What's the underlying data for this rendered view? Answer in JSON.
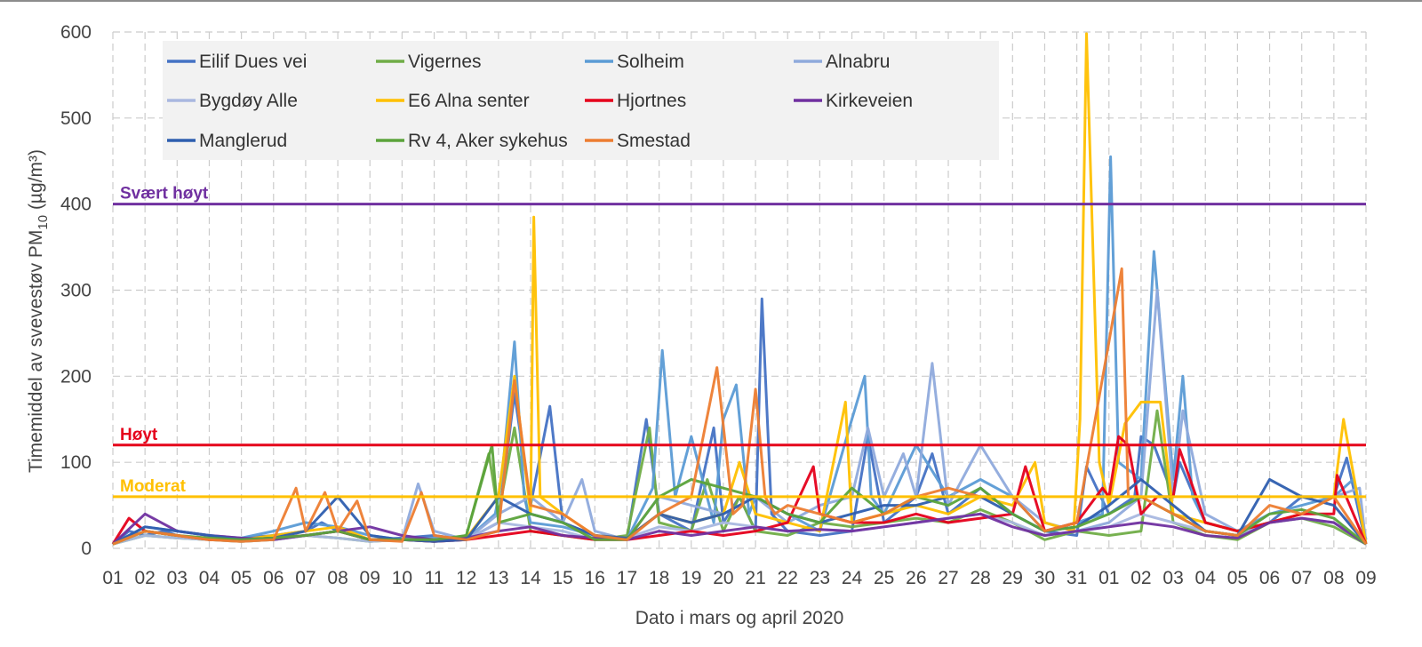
{
  "chart_data": {
    "type": "line",
    "title": "",
    "xlabel": "Dato i mars og april 2020",
    "ylabel_main": "Timemiddel av svevestøv PM",
    "ylabel_sub": "10",
    "ylabel_unit": " (µg/m³)",
    "ylim": [
      0,
      600
    ],
    "yticks": [
      "0",
      "100",
      "200",
      "300",
      "400",
      "500",
      "600"
    ],
    "xticks": [
      "01",
      "02",
      "03",
      "04",
      "05",
      "06",
      "07",
      "08",
      "09",
      "10",
      "11",
      "12",
      "13",
      "14",
      "15",
      "16",
      "17",
      "18",
      "19",
      "20",
      "21",
      "22",
      "23",
      "24",
      "25",
      "26",
      "27",
      "28",
      "29",
      "30",
      "31",
      "01",
      "02",
      "03",
      "04",
      "05",
      "06",
      "07",
      "08",
      "09"
    ],
    "grid": true,
    "legend_position": "top-left",
    "thresholds": [
      {
        "label": "Svært høyt",
        "value": 400,
        "color": "#7030A0"
      },
      {
        "label": "Høyt",
        "value": 120,
        "color": "#E5001B"
      },
      {
        "label": "Moderat",
        "value": 60,
        "color": "#FFC000"
      }
    ],
    "series": [
      {
        "name": "Eilif Dues vei",
        "color": "#4472C4",
        "x": [
          0,
          0.5,
          1,
          1.6,
          2,
          3,
          4,
          5,
          6,
          6.5,
          7,
          8,
          9,
          10,
          11,
          12,
          12.5,
          13,
          13.6,
          14,
          15,
          16,
          16.6,
          17,
          18,
          18.7,
          19,
          19.5,
          20,
          20.2,
          20.5,
          21,
          22,
          23,
          23.5,
          24,
          25,
          25.5,
          26,
          27,
          28,
          29,
          30,
          30.3,
          31,
          31.8,
          32,
          32.4,
          33,
          33.2,
          34,
          35,
          36,
          37,
          38,
          38.4,
          39
        ],
        "y": [
          5,
          20,
          15,
          20,
          15,
          10,
          12,
          15,
          20,
          30,
          20,
          10,
          12,
          15,
          10,
          30,
          180,
          50,
          165,
          30,
          15,
          10,
          150,
          40,
          20,
          140,
          30,
          60,
          20,
          290,
          40,
          20,
          15,
          20,
          130,
          30,
          60,
          110,
          40,
          70,
          40,
          20,
          15,
          95,
          40,
          60,
          130,
          120,
          60,
          100,
          30,
          20,
          30,
          60,
          60,
          105,
          5
        ]
      },
      {
        "name": "Vigernes",
        "color": "#70AD47",
        "x": [
          0,
          1,
          2,
          3,
          4,
          5,
          6,
          7,
          8,
          9,
          10,
          11,
          11.7,
          12,
          12.5,
          13,
          14,
          15,
          16,
          16.7,
          17,
          18,
          18.5,
          19,
          19.5,
          20,
          21,
          22,
          23,
          24,
          25,
          26,
          27,
          28,
          29,
          30,
          31,
          32,
          32.5,
          33,
          34,
          35,
          36,
          37,
          38,
          39
        ],
        "y": [
          5,
          15,
          12,
          10,
          8,
          10,
          15,
          12,
          8,
          10,
          8,
          15,
          110,
          40,
          140,
          20,
          15,
          10,
          15,
          140,
          30,
          20,
          80,
          20,
          60,
          20,
          15,
          30,
          25,
          30,
          35,
          30,
          45,
          30,
          10,
          20,
          15,
          20,
          160,
          30,
          15,
          10,
          30,
          35,
          25,
          5
        ]
      },
      {
        "name": "Solheim",
        "color": "#5B9BD5",
        "x": [
          0,
          1,
          2,
          3,
          4,
          5,
          6,
          7,
          8,
          9,
          10,
          11,
          11.9,
          12.1,
          12.5,
          12.8,
          13,
          14,
          15,
          16,
          16.8,
          17.1,
          17.5,
          18,
          18.7,
          19,
          19.4,
          19.8,
          20,
          21,
          22,
          23,
          23.4,
          23.6,
          24,
          25,
          26,
          27,
          28,
          29,
          30,
          30.8,
          31.05,
          31.3,
          32,
          32.4,
          33,
          33.3,
          33.6,
          34,
          35,
          36,
          37,
          38,
          38.6,
          39
        ],
        "y": [
          5,
          25,
          20,
          15,
          12,
          20,
          30,
          25,
          15,
          10,
          12,
          10,
          40,
          80,
          240,
          60,
          30,
          25,
          15,
          10,
          70,
          230,
          60,
          130,
          30,
          150,
          190,
          40,
          60,
          40,
          20,
          150,
          200,
          60,
          40,
          120,
          60,
          80,
          60,
          20,
          30,
          40,
          455,
          100,
          80,
          345,
          80,
          200,
          60,
          30,
          20,
          40,
          50,
          60,
          80,
          10
        ]
      },
      {
        "name": "Alnabru",
        "color": "#8FAADC",
        "x": [
          0,
          1,
          2,
          3,
          4,
          5,
          6,
          7,
          8,
          9,
          9.5,
          10,
          11,
          12,
          13,
          14,
          14.6,
          15,
          16,
          17,
          18,
          19,
          20,
          21,
          22,
          23,
          23.5,
          24,
          24.6,
          25,
          25.5,
          26,
          27,
          28,
          29,
          30,
          31,
          32,
          32.5,
          33,
          33.3,
          34,
          35,
          36,
          37,
          38,
          38.8,
          39
        ],
        "y": [
          5,
          20,
          15,
          10,
          10,
          12,
          15,
          20,
          10,
          10,
          75,
          20,
          10,
          40,
          60,
          30,
          80,
          20,
          10,
          60,
          50,
          40,
          60,
          30,
          50,
          60,
          140,
          60,
          110,
          60,
          215,
          50,
          120,
          60,
          30,
          20,
          30,
          60,
          300,
          60,
          160,
          40,
          20,
          30,
          40,
          60,
          70,
          5
        ]
      },
      {
        "name": "Bygdøy Alle",
        "color": "#A9B8E0",
        "x": [
          0,
          1,
          2,
          3,
          4,
          5,
          6,
          7,
          8,
          9,
          10,
          11,
          12,
          13,
          14,
          15,
          16,
          17,
          18,
          19,
          20,
          21,
          22,
          23,
          24,
          25,
          26,
          27,
          28,
          29,
          30,
          31,
          32,
          33,
          34,
          35,
          36,
          37,
          38,
          39
        ],
        "y": [
          5,
          15,
          12,
          10,
          8,
          10,
          15,
          12,
          8,
          10,
          8,
          10,
          30,
          25,
          20,
          10,
          12,
          25,
          20,
          30,
          25,
          20,
          22,
          20,
          25,
          30,
          35,
          40,
          30,
          15,
          20,
          25,
          40,
          30,
          20,
          15,
          30,
          35,
          30,
          5
        ]
      },
      {
        "name": "E6 Alna senter",
        "color": "#FFC000",
        "x": [
          0,
          1,
          2,
          3,
          4,
          5,
          6,
          7,
          8,
          9,
          10,
          11,
          12,
          12.5,
          13,
          13.1,
          13.3,
          14,
          15,
          16,
          17,
          18,
          19,
          19.5,
          20,
          21,
          22,
          22.8,
          23,
          24,
          25,
          26,
          27,
          28,
          28.7,
          29,
          29.9,
          30.1,
          30.3,
          30.7,
          31,
          31.5,
          32,
          32.6,
          33,
          34,
          35,
          36,
          37,
          38,
          38.3,
          39
        ],
        "y": [
          5,
          20,
          15,
          10,
          10,
          15,
          20,
          25,
          10,
          10,
          10,
          12,
          60,
          200,
          40,
          385,
          60,
          40,
          15,
          12,
          40,
          30,
          40,
          100,
          40,
          30,
          20,
          170,
          30,
          40,
          50,
          40,
          60,
          50,
          100,
          30,
          20,
          150,
          598,
          100,
          50,
          145,
          170,
          170,
          40,
          30,
          20,
          30,
          40,
          60,
          150,
          5
        ]
      },
      {
        "name": "Hjortnes",
        "color": "#E5001B",
        "x": [
          0,
          0.5,
          1,
          2,
          3,
          4,
          5,
          6,
          7,
          8,
          9,
          10,
          11,
          12,
          13,
          14,
          15,
          16,
          17,
          18,
          19,
          20,
          21,
          21.8,
          22,
          23,
          24,
          25,
          26,
          27,
          28,
          28.4,
          29,
          30,
          30.8,
          31,
          31.3,
          31.6,
          32,
          32.5,
          33,
          33.2,
          34,
          35,
          36,
          37,
          38,
          38.1,
          39
        ],
        "y": [
          5,
          35,
          20,
          15,
          10,
          10,
          12,
          15,
          20,
          10,
          10,
          8,
          10,
          15,
          20,
          15,
          10,
          10,
          15,
          20,
          15,
          20,
          30,
          95,
          40,
          30,
          30,
          40,
          30,
          35,
          40,
          95,
          20,
          30,
          70,
          60,
          130,
          120,
          40,
          60,
          60,
          115,
          30,
          20,
          30,
          40,
          40,
          85,
          5
        ]
      },
      {
        "name": "Kirkeveien",
        "color": "#7030A0",
        "x": [
          0,
          1,
          2,
          3,
          4,
          5,
          6,
          7,
          8,
          9,
          10,
          11,
          12,
          13,
          14,
          15,
          16,
          17,
          18,
          19,
          20,
          21,
          22,
          23,
          24,
          25,
          26,
          27,
          28,
          29,
          30,
          31,
          32,
          33,
          34,
          35,
          36,
          37,
          38,
          39
        ],
        "y": [
          5,
          40,
          20,
          15,
          12,
          10,
          15,
          20,
          25,
          15,
          10,
          12,
          20,
          25,
          15,
          12,
          10,
          20,
          15,
          20,
          25,
          20,
          22,
          20,
          25,
          30,
          35,
          40,
          25,
          15,
          20,
          25,
          30,
          25,
          15,
          12,
          30,
          35,
          30,
          5
        ]
      },
      {
        "name": "Manglerud",
        "color": "#2E5EAF",
        "x": [
          0,
          1,
          2,
          3,
          4,
          5,
          6,
          7,
          8,
          9,
          10,
          11,
          12,
          13,
          14,
          15,
          16,
          17,
          18,
          19,
          20,
          21,
          22,
          23,
          24,
          25,
          26,
          27,
          28,
          29,
          30,
          31,
          32,
          33,
          34,
          35,
          36,
          37,
          38,
          39
        ],
        "y": [
          5,
          25,
          20,
          15,
          10,
          12,
          20,
          60,
          15,
          10,
          8,
          10,
          60,
          40,
          30,
          15,
          12,
          40,
          30,
          40,
          60,
          40,
          30,
          40,
          50,
          50,
          60,
          60,
          40,
          20,
          25,
          50,
          80,
          50,
          20,
          15,
          80,
          60,
          50,
          5
        ]
      },
      {
        "name": "Rv 4, Aker sykehus",
        "color": "#5BA33B",
        "x": [
          0,
          1,
          2,
          3,
          4,
          5,
          6,
          7,
          8,
          9,
          10,
          11,
          11.8,
          12,
          13,
          14,
          15,
          16,
          17,
          18,
          19,
          20,
          21,
          22,
          23,
          24,
          25,
          26,
          27,
          28,
          29,
          30,
          31,
          32,
          33,
          34,
          35,
          36,
          37,
          38,
          39
        ],
        "y": [
          5,
          20,
          15,
          12,
          10,
          12,
          15,
          20,
          10,
          10,
          10,
          15,
          120,
          30,
          40,
          30,
          10,
          10,
          60,
          80,
          70,
          60,
          40,
          30,
          70,
          40,
          60,
          50,
          70,
          40,
          20,
          25,
          40,
          60,
          40,
          20,
          15,
          40,
          45,
          35,
          5
        ]
      },
      {
        "name": "Smestad",
        "color": "#ED7D31",
        "x": [
          0,
          1,
          2,
          3,
          4,
          5,
          5.7,
          6,
          6.6,
          7,
          7.6,
          8,
          9,
          9.6,
          10,
          11,
          12,
          12.5,
          13,
          14,
          15,
          16,
          17,
          18,
          18.8,
          19.3,
          19.6,
          20,
          20.3,
          20.6,
          21,
          22,
          23,
          24,
          25,
          26,
          27,
          28,
          29,
          30,
          31,
          31.4,
          31.6,
          32,
          33,
          34,
          35,
          36,
          37,
          38,
          39
        ],
        "y": [
          5,
          20,
          15,
          10,
          8,
          10,
          70,
          20,
          65,
          20,
          55,
          10,
          8,
          65,
          15,
          10,
          20,
          195,
          50,
          40,
          15,
          10,
          40,
          60,
          210,
          40,
          50,
          185,
          60,
          40,
          50,
          40,
          30,
          40,
          60,
          70,
          60,
          60,
          20,
          30,
          240,
          325,
          60,
          60,
          40,
          20,
          15,
          50,
          40,
          60,
          5
        ]
      }
    ]
  },
  "legend": {
    "items": [
      "Eilif Dues vei",
      "Vigernes",
      "Solheim",
      "Alnabru",
      "Bygdøy Alle",
      "E6 Alna senter",
      "Hjortnes",
      "Kirkeveien",
      "Manglerud",
      "Rv 4, Aker sykehus",
      "Smestad"
    ]
  }
}
